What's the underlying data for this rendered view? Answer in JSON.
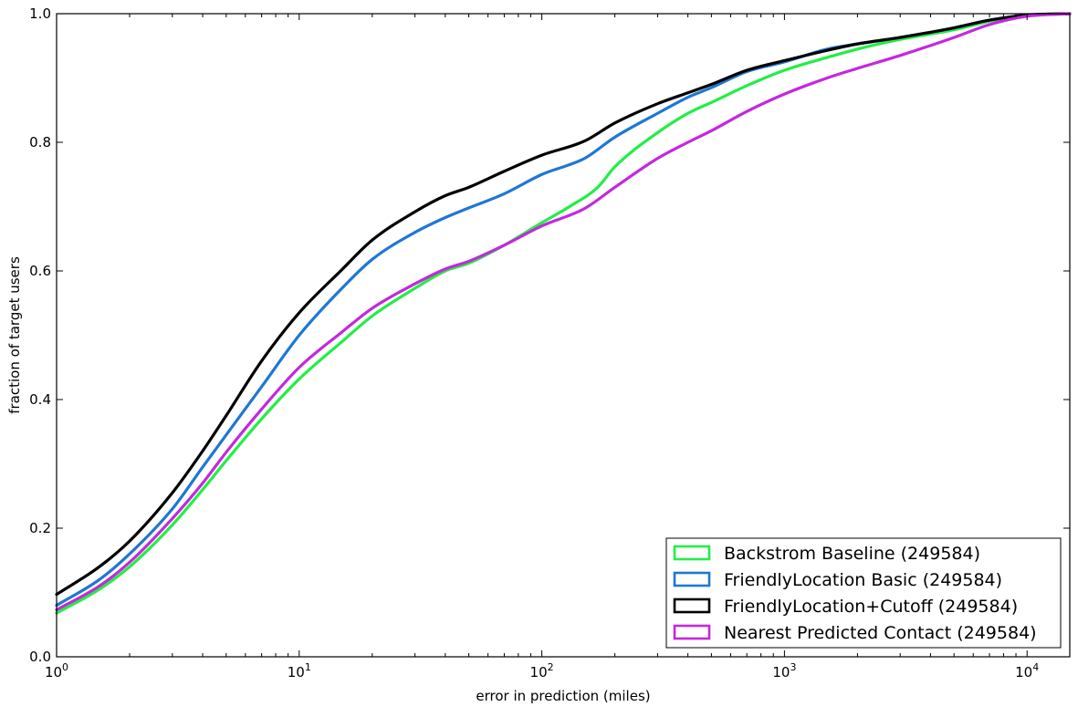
{
  "chart_data": {
    "type": "line",
    "title": "",
    "xlabel": "error in prediction (miles)",
    "ylabel": "fraction of target users",
    "xscale": "log",
    "xlim": [
      1,
      15000
    ],
    "ylim": [
      0,
      1.0
    ],
    "grid": false,
    "legend_position": "lower-right",
    "x_ticks": [
      {
        "value": 1,
        "base": "10",
        "exp": "0"
      },
      {
        "value": 10,
        "base": "10",
        "exp": "1"
      },
      {
        "value": 100,
        "base": "10",
        "exp": "2"
      },
      {
        "value": 1000,
        "base": "10",
        "exp": "3"
      },
      {
        "value": 10000,
        "base": "10",
        "exp": "4"
      }
    ],
    "y_ticks": [
      "0.0",
      "0.2",
      "0.4",
      "0.6",
      "0.8",
      "1.0"
    ],
    "series": [
      {
        "name": "Backstrom Baseline (249584)",
        "color": "#22ee44",
        "points": [
          [
            1,
            0.068
          ],
          [
            1.5,
            0.105
          ],
          [
            2,
            0.14
          ],
          [
            3,
            0.205
          ],
          [
            4,
            0.26
          ],
          [
            5,
            0.305
          ],
          [
            7,
            0.37
          ],
          [
            10,
            0.432
          ],
          [
            15,
            0.49
          ],
          [
            20,
            0.53
          ],
          [
            30,
            0.573
          ],
          [
            40,
            0.6
          ],
          [
            50,
            0.612
          ],
          [
            70,
            0.64
          ],
          [
            100,
            0.675
          ],
          [
            130,
            0.7
          ],
          [
            170,
            0.73
          ],
          [
            200,
            0.762
          ],
          [
            300,
            0.815
          ],
          [
            400,
            0.845
          ],
          [
            500,
            0.862
          ],
          [
            700,
            0.888
          ],
          [
            1000,
            0.912
          ],
          [
            1500,
            0.932
          ],
          [
            2000,
            0.945
          ],
          [
            3000,
            0.96
          ],
          [
            5000,
            0.975
          ],
          [
            7000,
            0.988
          ],
          [
            10000,
            0.997
          ],
          [
            15000,
            1.0
          ]
        ]
      },
      {
        "name": "FriendlyLocation Basic (249584)",
        "color": "#1f77d4",
        "points": [
          [
            1,
            0.08
          ],
          [
            1.5,
            0.12
          ],
          [
            2,
            0.16
          ],
          [
            3,
            0.23
          ],
          [
            4,
            0.295
          ],
          [
            5,
            0.345
          ],
          [
            7,
            0.42
          ],
          [
            10,
            0.5
          ],
          [
            15,
            0.573
          ],
          [
            20,
            0.618
          ],
          [
            30,
            0.66
          ],
          [
            40,
            0.683
          ],
          [
            50,
            0.698
          ],
          [
            70,
            0.72
          ],
          [
            100,
            0.75
          ],
          [
            150,
            0.775
          ],
          [
            200,
            0.808
          ],
          [
            300,
            0.845
          ],
          [
            400,
            0.87
          ],
          [
            500,
            0.885
          ],
          [
            700,
            0.91
          ],
          [
            1000,
            0.925
          ],
          [
            1500,
            0.945
          ],
          [
            2000,
            0.953
          ],
          [
            3000,
            0.963
          ],
          [
            5000,
            0.978
          ],
          [
            7000,
            0.99
          ],
          [
            10000,
            0.997
          ],
          [
            15000,
            1.0
          ]
        ]
      },
      {
        "name": "FriendlyLocation+Cutoff (249584)",
        "color": "#000000",
        "points": [
          [
            1,
            0.097
          ],
          [
            1.5,
            0.14
          ],
          [
            2,
            0.18
          ],
          [
            3,
            0.255
          ],
          [
            4,
            0.32
          ],
          [
            5,
            0.375
          ],
          [
            7,
            0.46
          ],
          [
            10,
            0.535
          ],
          [
            15,
            0.602
          ],
          [
            20,
            0.648
          ],
          [
            30,
            0.692
          ],
          [
            40,
            0.717
          ],
          [
            50,
            0.73
          ],
          [
            70,
            0.755
          ],
          [
            100,
            0.78
          ],
          [
            150,
            0.802
          ],
          [
            200,
            0.83
          ],
          [
            300,
            0.86
          ],
          [
            400,
            0.877
          ],
          [
            500,
            0.89
          ],
          [
            700,
            0.912
          ],
          [
            1000,
            0.927
          ],
          [
            1500,
            0.943
          ],
          [
            2000,
            0.953
          ],
          [
            3000,
            0.963
          ],
          [
            5000,
            0.978
          ],
          [
            7000,
            0.99
          ],
          [
            10000,
            0.998
          ],
          [
            15000,
            1.0
          ]
        ]
      },
      {
        "name": "Nearest Predicted Contact (249584)",
        "color": "#c428dd",
        "points": [
          [
            1,
            0.073
          ],
          [
            1.5,
            0.11
          ],
          [
            2,
            0.147
          ],
          [
            3,
            0.215
          ],
          [
            4,
            0.27
          ],
          [
            5,
            0.318
          ],
          [
            7,
            0.385
          ],
          [
            10,
            0.45
          ],
          [
            15,
            0.505
          ],
          [
            20,
            0.542
          ],
          [
            30,
            0.58
          ],
          [
            40,
            0.603
          ],
          [
            50,
            0.615
          ],
          [
            70,
            0.64
          ],
          [
            100,
            0.67
          ],
          [
            150,
            0.697
          ],
          [
            200,
            0.73
          ],
          [
            300,
            0.775
          ],
          [
            400,
            0.8
          ],
          [
            500,
            0.818
          ],
          [
            700,
            0.848
          ],
          [
            1000,
            0.875
          ],
          [
            1500,
            0.9
          ],
          [
            2000,
            0.915
          ],
          [
            3000,
            0.935
          ],
          [
            5000,
            0.963
          ],
          [
            7000,
            0.983
          ],
          [
            10000,
            0.996
          ],
          [
            15000,
            1.0
          ]
        ]
      }
    ]
  }
}
